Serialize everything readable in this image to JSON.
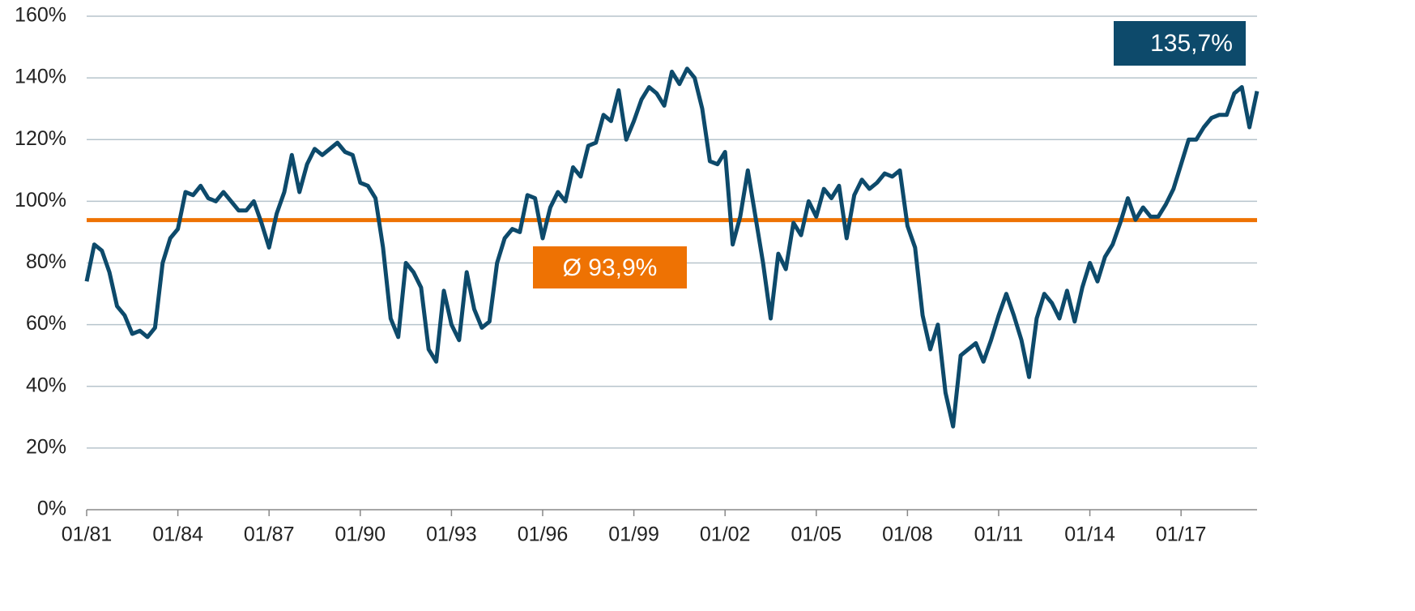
{
  "chart_data": {
    "type": "line",
    "x": [
      "01/81",
      "04/81",
      "07/81",
      "10/81",
      "01/82",
      "04/82",
      "07/82",
      "10/82",
      "01/83",
      "04/83",
      "07/83",
      "10/83",
      "01/84",
      "04/84",
      "07/84",
      "10/84",
      "01/85",
      "04/85",
      "07/85",
      "10/85",
      "01/86",
      "04/86",
      "07/86",
      "10/86",
      "01/87",
      "04/87",
      "07/87",
      "10/87",
      "01/88",
      "04/88",
      "07/88",
      "10/88",
      "01/89",
      "04/89",
      "07/89",
      "10/89",
      "01/90",
      "04/90",
      "07/90",
      "10/90",
      "01/91",
      "04/91",
      "07/91",
      "10/91",
      "01/92",
      "04/92",
      "07/92",
      "10/92",
      "01/93",
      "04/93",
      "07/93",
      "10/93",
      "01/94",
      "04/94",
      "07/94",
      "10/94",
      "01/95",
      "04/95",
      "07/95",
      "10/95",
      "01/96",
      "04/96",
      "07/96",
      "10/96",
      "01/97",
      "04/97",
      "07/97",
      "10/97",
      "01/98",
      "04/98",
      "07/98",
      "10/98",
      "01/99",
      "04/99",
      "07/99",
      "10/99",
      "01/00",
      "04/00",
      "07/00",
      "10/00",
      "01/01",
      "04/01",
      "07/01",
      "10/01",
      "01/02",
      "04/02",
      "07/02",
      "10/02",
      "01/03",
      "04/03",
      "07/03",
      "10/03",
      "01/04",
      "04/04",
      "07/04",
      "10/04",
      "01/05",
      "04/05",
      "07/05",
      "10/05",
      "01/06",
      "04/06",
      "07/06",
      "10/06",
      "01/07",
      "04/07",
      "07/07",
      "10/07",
      "01/08",
      "04/08",
      "07/08",
      "10/08",
      "01/09",
      "04/09",
      "07/09",
      "10/09",
      "01/10",
      "04/10",
      "07/10",
      "10/10",
      "01/11",
      "04/11",
      "07/11",
      "10/11",
      "01/12",
      "04/12",
      "07/12",
      "10/12",
      "01/13",
      "04/13",
      "07/13",
      "10/13",
      "01/14",
      "04/14",
      "07/14",
      "10/14",
      "01/15",
      "04/15",
      "07/15",
      "10/15",
      "01/16",
      "04/16",
      "07/16",
      "10/16",
      "01/17",
      "04/17",
      "07/17",
      "10/17",
      "01/18",
      "04/18",
      "07/18",
      "10/18",
      "01/19",
      "04/19",
      "07/19"
    ],
    "series": [
      {
        "color": "#0d4a6b",
        "values": [
          74,
          86,
          84,
          77,
          66,
          63,
          57,
          58,
          56,
          59,
          80,
          88,
          91,
          103,
          102,
          105,
          101,
          100,
          103,
          100,
          97,
          97,
          100,
          93,
          85,
          96,
          103,
          115,
          103,
          112,
          117,
          115,
          117,
          119,
          116,
          115,
          106,
          105,
          101,
          85,
          62,
          56,
          80,
          77,
          72,
          52,
          48,
          71,
          60,
          55,
          77,
          65,
          59,
          61,
          80,
          88,
          91,
          90,
          102,
          101,
          88,
          98,
          103,
          100,
          111,
          108,
          118,
          119,
          128,
          126,
          136,
          120,
          126,
          133,
          137,
          135,
          131,
          142,
          138,
          143,
          140,
          130,
          113,
          112,
          116,
          86,
          95,
          110,
          95,
          80,
          62,
          83,
          78,
          93,
          89,
          100,
          95,
          104,
          101,
          105,
          88,
          102,
          107,
          104,
          106,
          109,
          108,
          110,
          92,
          85,
          63,
          52,
          60,
          38,
          27,
          50,
          52,
          54,
          48,
          55,
          63,
          70,
          63,
          55,
          43,
          62,
          70,
          67,
          62,
          71,
          61,
          72,
          80,
          74,
          82,
          86,
          93,
          101,
          94,
          98,
          95,
          95,
          99,
          104,
          112,
          120,
          120,
          124,
          127,
          128,
          128,
          135,
          137,
          124,
          135.7
        ],
        "value_labels": [
          null,
          null,
          null,
          null,
          null,
          null,
          null,
          null,
          null,
          null,
          null,
          null,
          null,
          null,
          null,
          null,
          null,
          null,
          null,
          null,
          null,
          null,
          null,
          null,
          null,
          null,
          null,
          null,
          null,
          null,
          null,
          null,
          null,
          null,
          null,
          null,
          null,
          null,
          null,
          null,
          null,
          null,
          null,
          null,
          null,
          null,
          null,
          null,
          null,
          null,
          null,
          null,
          null,
          null,
          null,
          null,
          null,
          null,
          null,
          null,
          null,
          null,
          null,
          null,
          null,
          null,
          null,
          null,
          null,
          null,
          null,
          null,
          null,
          null,
          null,
          null,
          null,
          null,
          null,
          null,
          null,
          null,
          null,
          null,
          null,
          null,
          null,
          null,
          null,
          null,
          null,
          null,
          null,
          null,
          null,
          null,
          null,
          null,
          null,
          null,
          null,
          null,
          null,
          null,
          null,
          null,
          null,
          null,
          null,
          null,
          null,
          null,
          null,
          null,
          null,
          null,
          null,
          null,
          null,
          null,
          null,
          null,
          null,
          null,
          null,
          null,
          null,
          null,
          null,
          null,
          null,
          null,
          null,
          null,
          null,
          null,
          null,
          null,
          null,
          null,
          null,
          null,
          null,
          null,
          null,
          null,
          null,
          null,
          null,
          null,
          null,
          null,
          null,
          null,
          "135,7%"
        ]
      }
    ],
    "reference_line": {
      "value": 93.9,
      "label": "Ø 93,9%",
      "color": "#ee7203"
    },
    "xlim": [
      "01/81",
      "07/19"
    ],
    "xticks": [
      "01/81",
      "01/84",
      "01/87",
      "01/90",
      "01/93",
      "01/96",
      "01/99",
      "01/02",
      "01/05",
      "01/08",
      "01/11",
      "01/14",
      "01/17"
    ],
    "ylim": [
      0,
      160
    ],
    "yticks": [
      {
        "value": 0,
        "label": "0%"
      },
      {
        "value": 20,
        "label": "20%"
      },
      {
        "value": 40,
        "label": "40%"
      },
      {
        "value": 60,
        "label": "60%"
      },
      {
        "value": 80,
        "label": "80%"
      },
      {
        "value": 100,
        "label": "100%"
      },
      {
        "value": 120,
        "label": "120%"
      },
      {
        "value": 140,
        "label": "140%"
      },
      {
        "value": 160,
        "label": "160%"
      }
    ],
    "grid": true
  }
}
